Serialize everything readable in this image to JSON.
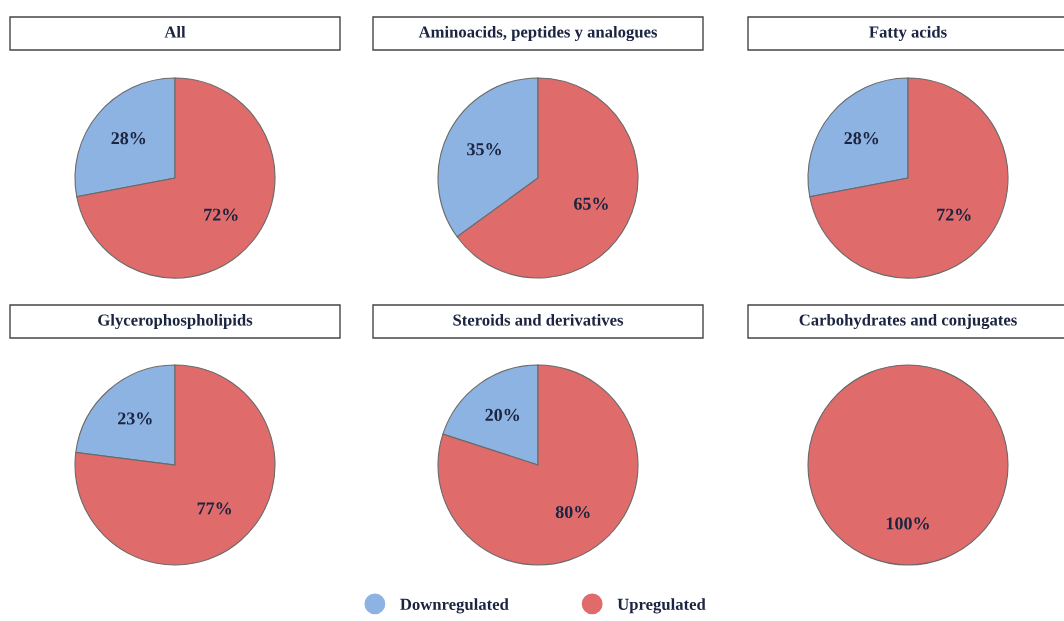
{
  "chart_data": [
    {
      "type": "pie",
      "title": "All",
      "categories": [
        "Downregulated",
        "Upregulated"
      ],
      "values": [
        28,
        72
      ],
      "colors": [
        "#8db3e2",
        "#e06b6b"
      ],
      "value_labels": [
        "28%",
        "72%"
      ],
      "legend": "bottom"
    },
    {
      "type": "pie",
      "title": "Aminoacids, peptides y analogues",
      "categories": [
        null,
        null
      ],
      "values": [
        35,
        65
      ],
      "colors": [
        "#8db3e2",
        "#e06b6b"
      ],
      "value_labels": [
        "35%",
        "65%"
      ]
    },
    {
      "type": "pie",
      "title": "Fatty acids",
      "categories": [
        null,
        null
      ],
      "values": [
        28,
        72
      ],
      "colors": [
        "#8db3e2",
        "#e06b6b"
      ],
      "value_labels": [
        "28%",
        "72%"
      ]
    },
    {
      "type": "pie",
      "title": "Glycerophospholipids",
      "categories": [
        null,
        null
      ],
      "values": [
        23,
        77
      ],
      "colors": [
        "#8db3e2",
        "#e06b6b"
      ],
      "value_labels": [
        "23%",
        "77%"
      ]
    },
    {
      "type": "pie",
      "title": "Steroids and derivatives",
      "categories": [
        null,
        null
      ],
      "values": [
        20,
        80
      ],
      "colors": [
        "#8db3e2",
        "#e06b6b"
      ],
      "value_labels": [
        "20%",
        "80%"
      ]
    },
    {
      "type": "pie",
      "title": "Carbohydrates and conjugates",
      "categories": [
        null,
        null
      ],
      "values": [
        0,
        100
      ],
      "colors": [
        "#8db3e2",
        "#e06b6b"
      ],
      "value_labels": [
        null,
        "100%"
      ]
    }
  ]
}
